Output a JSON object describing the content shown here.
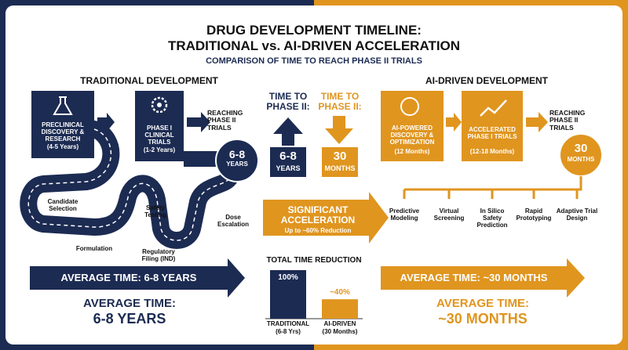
{
  "header": {
    "title_line1": "DRUG DEVELOPMENT TIMELINE:",
    "title_line2": "TRADITIONAL vs. AI-DRIVEN ACCELERATION",
    "subtitle": "COMPARISON OF TIME TO REACH PHASE II TRIALS"
  },
  "traditional": {
    "heading": "TRADITIONAL DEVELOPMENT",
    "steps": [
      {
        "title": "PRECLINICAL DISCOVERY & RESEARCH",
        "duration": "(4-5 Years)"
      },
      {
        "title": "PHASE I CLINICAL TRIALS",
        "duration": "(1-2 Years)"
      }
    ],
    "reaching": "REACHING PHASE II TRIALS",
    "milestone_value": "6-8",
    "milestone_unit": "YEARS",
    "road_labels": [
      "Candidate Selection",
      "Formulation",
      "Safety Testing",
      "Regulatory Filing (IND)",
      "Dose Escalation"
    ],
    "average_banner": "AVERAGE TIME: 6-8 YEARS",
    "average_label": "AVERAGE TIME:",
    "average_value": "6-8 YEARS"
  },
  "comparison": {
    "traditional_label": "TIME TO PHASE II:",
    "traditional_value": "6-8",
    "traditional_unit": "YEARS",
    "ai_label": "TIME TO PHASE II:",
    "ai_value": "30",
    "ai_unit": "MONTHS",
    "acceleration_title": "SIGNIFICANT ACCELERATION",
    "acceleration_note": "Up to ~60% Reduction"
  },
  "ai": {
    "heading": "AI-DRIVEN DEVELOPMENT",
    "steps": [
      {
        "title": "AI-POWERED DISCOVERY & OPTIMIZATION",
        "duration": "(12 Months)"
      },
      {
        "title": "ACCELERATED PHASE I TRIALS",
        "duration": "(12-18 Months)"
      }
    ],
    "reaching": "REACHING PHASE II TRIALS",
    "milestone_value": "30",
    "milestone_unit": "MONTHS",
    "tools": [
      "Predictive Modeling",
      "Virtual Screening",
      "In Silico Safety Prediction",
      "Rapid Prototyping",
      "Adaptive Trial Design"
    ],
    "average_banner": "AVERAGE TIME: ~30 MONTHS",
    "average_label": "AVERAGE TIME:",
    "average_value": "~30 MONTHS"
  },
  "reduction_chart": {
    "title": "TOTAL TIME REDUCTION",
    "bars": [
      {
        "label": "TRADITIONAL",
        "sublabel": "(6-8 Yrs)",
        "value": 100,
        "value_label": "100%",
        "color": "#1c2b52"
      },
      {
        "label": "AI-DRIVEN",
        "sublabel": "(30 Months)",
        "value": 40,
        "value_label": "~40%",
        "color": "#e0951f"
      }
    ]
  }
}
